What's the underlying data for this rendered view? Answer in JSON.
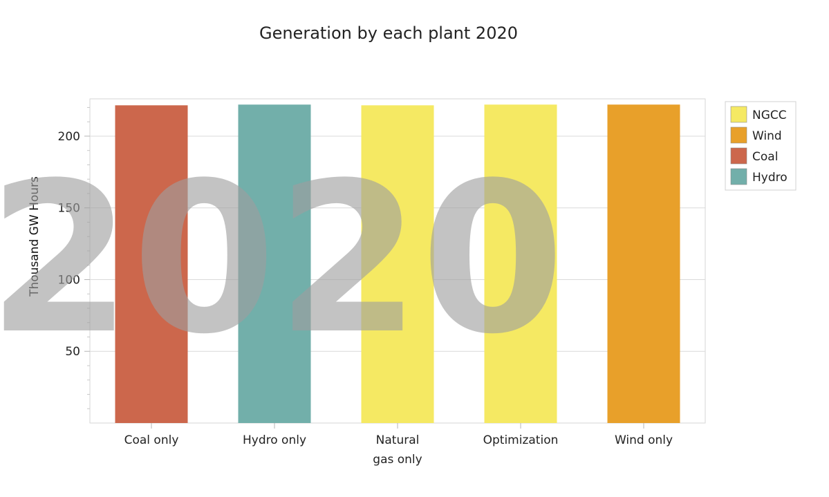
{
  "chart_data": {
    "type": "bar",
    "title": "Generation by each plant 2020",
    "xlabel": "",
    "ylabel": "Thousand GW Hours",
    "watermark": "2020",
    "categories": [
      "Coal only",
      "Hydro only",
      "Natural gas only",
      "Optimization",
      "Wind only"
    ],
    "category_label_lines": [
      [
        "Coal only"
      ],
      [
        "Hydro only"
      ],
      [
        "Natural",
        "gas only"
      ],
      [
        "Optimization"
      ],
      [
        "Wind only"
      ]
    ],
    "values": [
      221.5,
      222,
      221.5,
      222,
      222
    ],
    "bar_series": [
      "Coal",
      "Hydro",
      "NGCC",
      "NGCC",
      "Wind"
    ],
    "ylim": [
      0,
      226
    ],
    "yticks": [
      50,
      100,
      150,
      200
    ],
    "ytick_labels": [
      "50",
      "100",
      "150",
      "200"
    ],
    "grid": true,
    "legend": {
      "position": "top-right",
      "entries": [
        {
          "name": "NGCC",
          "color": "#f5e963"
        },
        {
          "name": "Wind",
          "color": "#e8a02a"
        },
        {
          "name": "Coal",
          "color": "#cc674c"
        },
        {
          "name": "Hydro",
          "color": "#72afaa"
        }
      ]
    }
  }
}
